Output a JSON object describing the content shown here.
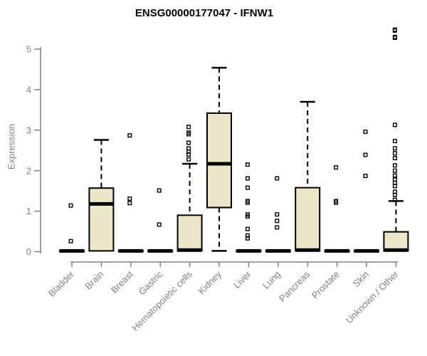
{
  "chart_data": {
    "type": "boxplot",
    "title": "ENSG00000177047 - IFNW1",
    "xlabel": "",
    "ylabel": "Expression",
    "ylim": [
      0,
      5.5
    ],
    "yticks": [
      0,
      1,
      2,
      3,
      4,
      5
    ],
    "grid": false,
    "legend": "none",
    "categories": [
      "Bladder",
      "Brain",
      "Breast",
      "Gastric",
      "Hematopoietic cells",
      "Kidney",
      "Liver",
      "Lung",
      "Pancreas",
      "Prostate",
      "Skin",
      "Unknown / Other"
    ],
    "series": [
      {
        "name": "Bladder",
        "whisker_low": 0,
        "q1": 0,
        "median": 0.02,
        "q3": 0.03,
        "whisker_high": 0.03,
        "outliers": [
          1.14,
          0.26
        ]
      },
      {
        "name": "Brain",
        "whisker_low": 0,
        "q1": 0.02,
        "median": 1.18,
        "q3": 1.57,
        "whisker_high": 2.76,
        "outliers": []
      },
      {
        "name": "Breast",
        "whisker_low": 0,
        "q1": 0,
        "median": 0.02,
        "q3": 0.03,
        "whisker_high": 0.03,
        "outliers": [
          2.87,
          1.31,
          1.2
        ]
      },
      {
        "name": "Gastric",
        "whisker_low": 0,
        "q1": 0,
        "median": 0.02,
        "q3": 0.03,
        "whisker_high": 0.03,
        "outliers": [
          1.51,
          0.67
        ]
      },
      {
        "name": "Hematopoietic cells",
        "whisker_low": 0,
        "q1": 0.02,
        "median": 0.04,
        "q3": 0.9,
        "whisker_high": 2.17,
        "outliers": [
          3.08,
          2.94,
          2.9,
          2.69,
          2.55,
          2.47,
          2.4,
          2.28
        ]
      },
      {
        "name": "Kidney",
        "whisker_low": 0.02,
        "q1": 1.09,
        "median": 2.17,
        "q3": 3.42,
        "whisker_high": 4.54,
        "outliers": []
      },
      {
        "name": "Liver",
        "whisker_low": 0,
        "q1": 0,
        "median": 0.02,
        "q3": 0.03,
        "whisker_high": 0.03,
        "outliers": [
          2.15,
          1.81,
          1.58,
          1.25,
          1.21,
          0.92,
          0.87,
          0.56,
          0.4,
          0.33
        ]
      },
      {
        "name": "Lung",
        "whisker_low": 0,
        "q1": 0,
        "median": 0.02,
        "q3": 0.03,
        "whisker_high": 0.03,
        "outliers": [
          1.81,
          0.92,
          0.76,
          0.6
        ]
      },
      {
        "name": "Pancreas",
        "whisker_low": 0,
        "q1": 0.02,
        "median": 0.04,
        "q3": 1.58,
        "whisker_high": 3.7,
        "outliers": []
      },
      {
        "name": "Prostate",
        "whisker_low": 0,
        "q1": 0,
        "median": 0.02,
        "q3": 0.03,
        "whisker_high": 0.03,
        "outliers": [
          2.08,
          1.25,
          1.21
        ]
      },
      {
        "name": "Skin",
        "whisker_low": 0,
        "q1": 0,
        "median": 0.02,
        "q3": 0.03,
        "whisker_high": 0.03,
        "outliers": [
          2.96,
          2.39,
          1.87
        ]
      },
      {
        "name": "Unknown / Other",
        "whisker_low": 0,
        "q1": 0.02,
        "median": 0.04,
        "q3": 0.49,
        "whisker_high": 1.25,
        "outliers": [
          5.48,
          5.46,
          5.3,
          5.28,
          3.13,
          2.73,
          2.55,
          2.43,
          2.31,
          2.13,
          2.0,
          1.88,
          1.78,
          1.7,
          1.62,
          1.48,
          1.4,
          1.28
        ]
      }
    ],
    "colors": {
      "box_fill": "#ece6c8",
      "box_border": "#000000",
      "median": "#000000",
      "whisker": "#000000",
      "outlier": "#000000",
      "axis": "#808080",
      "tick_text": "#828282",
      "title_text": "#000000",
      "background": "#ffffff"
    }
  }
}
